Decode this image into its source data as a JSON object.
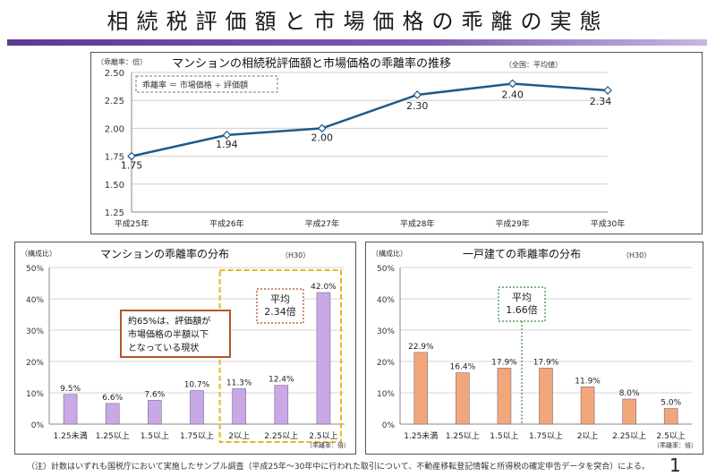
{
  "page": {
    "title": "相続税評価額と市場価格の乖離の実態",
    "footnote": "（注）計数はいずれも国税庁において実施したサンプル調査（平成25年～30年中に行われた取引について、不動産移転登記情報と所得税の確定申告データを突合）による。",
    "page_number": "1",
    "accent_color": "#5b3b8f"
  },
  "chart_data": [
    {
      "type": "line",
      "title": "マンションの相続税評価額と市場価格の乖離率の推移",
      "subtitle": "（全国：平均値）",
      "unit_label": "（乖離率：倍）",
      "formula": "乖離率 ＝ 市場価格 ÷ 評価額",
      "x": [
        "平成25年",
        "平成26年",
        "平成27年",
        "平成28年",
        "平成29年",
        "平成30年"
      ],
      "values": [
        1.75,
        1.94,
        2.0,
        2.3,
        2.4,
        2.34
      ],
      "value_labels": [
        "1.75",
        "1.94",
        "2.00",
        "2.30",
        "2.40",
        "2.34"
      ],
      "ylim": [
        1.25,
        2.5
      ],
      "yticks": [
        1.25,
        1.5,
        1.75,
        2.0,
        2.25,
        2.5
      ],
      "ytick_labels": [
        "1.25",
        "1.50",
        "1.75",
        "2.00",
        "2.25",
        "2.50"
      ],
      "grid": true,
      "color": "#1f5a8a"
    },
    {
      "type": "bar",
      "title": "マンションの乖離率の分布",
      "subtitle": "（H30）",
      "unit_label": "（構成比）",
      "xunit": "（乖離率：倍）",
      "categories": [
        "1.25未満",
        "1.25以上",
        "1.5以上",
        "1.75以上",
        "2以上",
        "2.25以上",
        "2.5以上"
      ],
      "values": [
        9.5,
        6.6,
        7.6,
        10.7,
        11.3,
        12.4,
        42.0
      ],
      "value_labels": [
        "9.5%",
        "6.6%",
        "7.6%",
        "10.7%",
        "11.3%",
        "12.4%",
        "42.0%"
      ],
      "ylim": [
        0,
        50
      ],
      "yticks": [
        0,
        10,
        20,
        30,
        40,
        50
      ],
      "ytick_labels": [
        "0%",
        "10%",
        "20%",
        "30%",
        "40%",
        "50%"
      ],
      "grid": true,
      "color": "#c9a8e6",
      "average_box": "平均\n2.34倍",
      "note_box": "約65%は、評価額が\n市場価格の半額以下\nとなっている現状",
      "highlight_from_index": 4,
      "highlight_color": "#e8b820"
    },
    {
      "type": "bar",
      "title": "一戸建ての乖離率の分布",
      "subtitle": "（H30）",
      "unit_label": "（構成比）",
      "xunit": "（乖離率：倍）",
      "categories": [
        "1.25未満",
        "1.25以上",
        "1.5以上",
        "1.75以上",
        "2以上",
        "2.25以上",
        "2.5以上"
      ],
      "values": [
        22.9,
        16.4,
        17.9,
        17.9,
        11.9,
        8.0,
        5.0
      ],
      "value_labels": [
        "22.9%",
        "16.4%",
        "17.9%",
        "17.9%",
        "11.9%",
        "8.0%",
        "5.0%"
      ],
      "ylim": [
        0,
        50
      ],
      "yticks": [
        0,
        10,
        20,
        30,
        40,
        50
      ],
      "ytick_labels": [
        "0%",
        "10%",
        "20%",
        "30%",
        "40%",
        "50%"
      ],
      "grid": true,
      "color": "#f2a77a",
      "average_box": "平均\n1.66倍"
    }
  ]
}
